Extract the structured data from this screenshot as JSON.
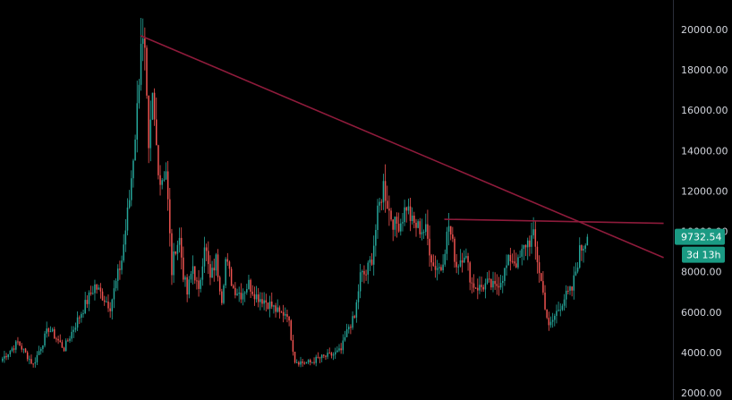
{
  "chart_data": {
    "type": "candlestick",
    "title": "",
    "xlabel": "",
    "ylabel": "",
    "ylim": [
      2000,
      21000
    ],
    "y_ticks": [
      "2000.00",
      "4000.00",
      "6000.00",
      "8000.00",
      "10000.00",
      "12000.00",
      "14000.00",
      "16000.00",
      "18000.00",
      "20000.00"
    ],
    "grid": false,
    "colors": {
      "up": "#26a69a",
      "down": "#ef5350",
      "trendline": "#8e1b3b",
      "axis_line": "#2a2e39",
      "badge": "#1a9a83"
    },
    "last_price": {
      "value": 9732.54,
      "label": "9732.54"
    },
    "countdown": {
      "label": "3d 13h"
    },
    "anchors": [
      [
        0,
        3700
      ],
      [
        8,
        4500
      ],
      [
        16,
        3400
      ],
      [
        24,
        5200
      ],
      [
        32,
        4200
      ],
      [
        40,
        5800
      ],
      [
        48,
        7300
      ],
      [
        56,
        6300
      ],
      [
        62,
        8600
      ],
      [
        66,
        11600
      ],
      [
        70,
        16000
      ],
      [
        72,
        19700
      ],
      [
        74,
        18500
      ],
      [
        76,
        13600
      ],
      [
        78,
        16500
      ],
      [
        80,
        14200
      ],
      [
        82,
        12500
      ],
      [
        85,
        13100
      ],
      [
        88,
        8000
      ],
      [
        90,
        9300
      ],
      [
        92,
        9600
      ],
      [
        94,
        7900
      ],
      [
        96,
        6900
      ],
      [
        99,
        8300
      ],
      [
        102,
        6900
      ],
      [
        105,
        9500
      ],
      [
        108,
        7600
      ],
      [
        111,
        8600
      ],
      [
        114,
        6700
      ],
      [
        116,
        8600
      ],
      [
        120,
        7200
      ],
      [
        124,
        6900
      ],
      [
        128,
        7400
      ],
      [
        132,
        6800
      ],
      [
        136,
        6600
      ],
      [
        140,
        6300
      ],
      [
        144,
        5900
      ],
      [
        148,
        6000
      ],
      [
        152,
        3600
      ],
      [
        156,
        3500
      ],
      [
        160,
        3500
      ],
      [
        164,
        3700
      ],
      [
        168,
        3800
      ],
      [
        172,
        3900
      ],
      [
        176,
        4100
      ],
      [
        180,
        5300
      ],
      [
        183,
        5700
      ],
      [
        186,
        7800
      ],
      [
        189,
        7900
      ],
      [
        192,
        8700
      ],
      [
        195,
        10800
      ],
      [
        198,
        12300
      ],
      [
        201,
        11000
      ],
      [
        204,
        10300
      ],
      [
        207,
        10500
      ],
      [
        210,
        11300
      ],
      [
        213,
        10400
      ],
      [
        216,
        10200
      ],
      [
        220,
        10000
      ],
      [
        224,
        8300
      ],
      [
        228,
        8200
      ],
      [
        232,
        10300
      ],
      [
        236,
        8300
      ],
      [
        240,
        9000
      ],
      [
        244,
        7400
      ],
      [
        248,
        7200
      ],
      [
        252,
        7400
      ],
      [
        256,
        7200
      ],
      [
        260,
        7800
      ],
      [
        264,
        8700
      ],
      [
        268,
        8400
      ],
      [
        272,
        9400
      ],
      [
        276,
        9700
      ],
      [
        280,
        7500
      ],
      [
        284,
        5200
      ],
      [
        288,
        6000
      ],
      [
        292,
        6700
      ],
      [
        296,
        7100
      ],
      [
        300,
        9000
      ],
      [
        304,
        9700
      ]
    ],
    "trendlines": [
      {
        "from": [
          72,
          19700
        ],
        "to": [
          344,
          8700
        ]
      },
      {
        "from": [
          230,
          10600
        ],
        "to": [
          344,
          10400
        ]
      }
    ]
  }
}
